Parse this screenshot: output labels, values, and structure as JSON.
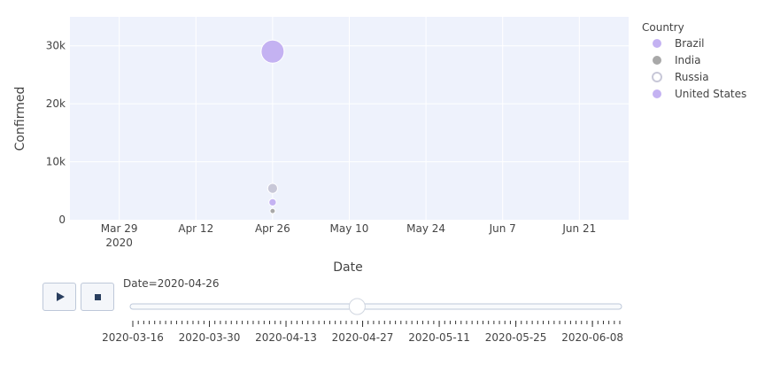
{
  "chart_data": {
    "type": "scatter",
    "xlabel": "Date",
    "ylabel": "Confirmed",
    "xlim": [
      "2020-03-20",
      "2020-06-30"
    ],
    "ylim": [
      0,
      35000
    ],
    "x_ticks": [
      {
        "date": "2020-03-29",
        "label": "Mar 29",
        "sub": "2020"
      },
      {
        "date": "2020-04-12",
        "label": "Apr 12",
        "sub": ""
      },
      {
        "date": "2020-04-26",
        "label": "Apr 26",
        "sub": ""
      },
      {
        "date": "2020-05-10",
        "label": "May 10",
        "sub": ""
      },
      {
        "date": "2020-05-24",
        "label": "May 24",
        "sub": ""
      },
      {
        "date": "2020-06-07",
        "label": "Jun 7",
        "sub": ""
      },
      {
        "date": "2020-06-21",
        "label": "Jun 21",
        "sub": ""
      }
    ],
    "y_ticks": [
      {
        "value": 0,
        "label": "0"
      },
      {
        "value": 10000,
        "label": "10k"
      },
      {
        "value": 20000,
        "label": "20k"
      },
      {
        "value": 30000,
        "label": "30k"
      }
    ],
    "grid": true,
    "plot_background": "#eef2fc",
    "legend": {
      "title": "Country",
      "placement": "right",
      "entries": [
        {
          "name": "Brazil",
          "color": "#c4b2f2",
          "style": "solid"
        },
        {
          "name": "India",
          "color": "#a8a8a8",
          "style": "solid"
        },
        {
          "name": "Russia",
          "color": "#c8c8d8",
          "style": "ring"
        },
        {
          "name": "United States",
          "color": "#c4b2f2",
          "style": "solid"
        }
      ]
    },
    "series": [
      {
        "name": "United States",
        "x": [
          "2020-04-26"
        ],
        "y": [
          29000
        ],
        "color": "#c4b2f2",
        "size_value": 29000
      },
      {
        "name": "Russia",
        "x": [
          "2020-04-26"
        ],
        "y": [
          5400
        ],
        "color": "#c8c8d8",
        "size_value": 5400
      },
      {
        "name": "Brazil",
        "x": [
          "2020-04-26"
        ],
        "y": [
          3000
        ],
        "color": "#c4b2f2",
        "size_value": 3000
      },
      {
        "name": "India",
        "x": [
          "2020-04-26"
        ],
        "y": [
          1500
        ],
        "color": "#a8a8a8",
        "size_value": 1500
      }
    ]
  },
  "animation": {
    "current_label": "Date=2020-04-26",
    "slider_start": "2020-03-16",
    "slider_end": "2020-06-13",
    "slider_current": "2020-04-26",
    "slider_ticks": [
      "2020-03-16",
      "2020-03-30",
      "2020-04-13",
      "2020-04-27",
      "2020-05-11",
      "2020-05-25",
      "2020-06-08"
    ]
  }
}
